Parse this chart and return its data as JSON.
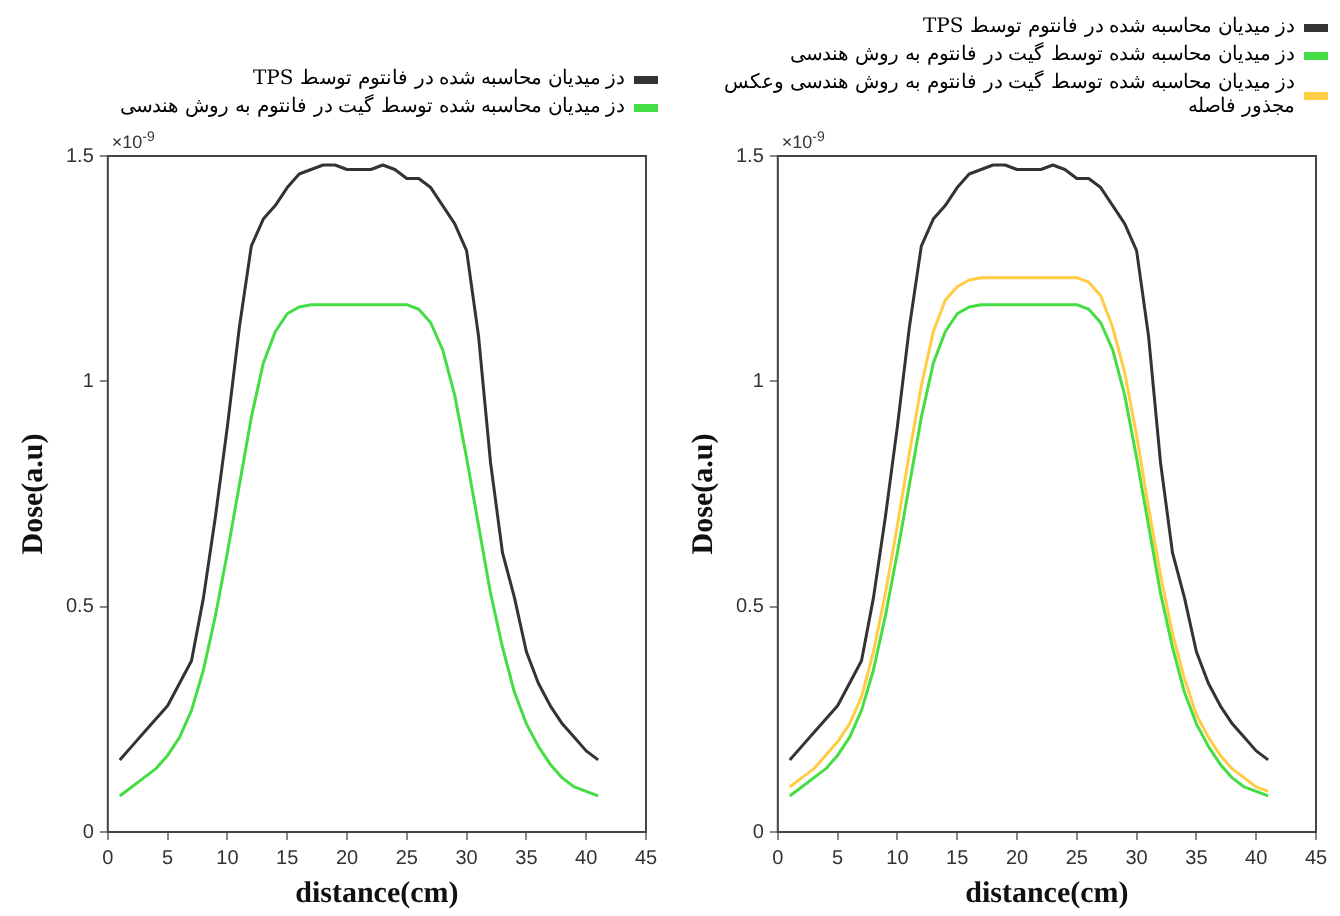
{
  "chart_data": [
    {
      "type": "line",
      "xlabel": "distance(cm)",
      "ylabel": "Dose(a.u)",
      "annotations": [
        "×10$^{-9}$"
      ],
      "legend": "top",
      "marker": "none",
      "line_style": "solid",
      "grid": false,
      "x": [
        1,
        2,
        3,
        4,
        5,
        6,
        7,
        8,
        9,
        10,
        11,
        12,
        13,
        14,
        15,
        16,
        17,
        18,
        19,
        20,
        21,
        22,
        23,
        24,
        25,
        26,
        27,
        28,
        29,
        30,
        31,
        32,
        33,
        34,
        35,
        36,
        37,
        38,
        39,
        40,
        41
      ],
      "xlim": [
        0,
        45
      ],
      "xticks": [
        0,
        5,
        10,
        15,
        20,
        25,
        30,
        35,
        40,
        45
      ],
      "ylim": [
        0,
        1.5
      ],
      "yticks": [
        0,
        0.5,
        1,
        1.5
      ],
      "series": [
        {
          "name": "دز میدیان محاسبه شده در فانتوم توسط TPS",
          "color": "#333333",
          "values": [
            0.16,
            0.19,
            0.22,
            0.25,
            0.28,
            0.33,
            0.38,
            0.52,
            0.7,
            0.9,
            1.12,
            1.3,
            1.36,
            1.39,
            1.43,
            1.46,
            1.47,
            1.48,
            1.48,
            1.47,
            1.47,
            1.47,
            1.48,
            1.47,
            1.45,
            1.45,
            1.43,
            1.39,
            1.35,
            1.29,
            1.1,
            0.82,
            0.62,
            0.52,
            0.4,
            0.33,
            0.28,
            0.24,
            0.21,
            0.18,
            0.16
          ]
        },
        {
          "name": "دز میدیان محاسبه شده توسط گیت در فانتوم به روش هندسی",
          "color": "#44dd44",
          "values": [
            0.08,
            0.1,
            0.12,
            0.14,
            0.17,
            0.21,
            0.27,
            0.36,
            0.48,
            0.62,
            0.77,
            0.92,
            1.04,
            1.11,
            1.15,
            1.165,
            1.17,
            1.17,
            1.17,
            1.17,
            1.17,
            1.17,
            1.17,
            1.17,
            1.17,
            1.16,
            1.13,
            1.07,
            0.97,
            0.83,
            0.68,
            0.53,
            0.41,
            0.31,
            0.24,
            0.19,
            0.15,
            0.12,
            0.1,
            0.09,
            0.08
          ]
        }
      ]
    },
    {
      "type": "line",
      "xlabel": "distance(cm)",
      "ylabel": "Dose(a.u)",
      "annotations": [
        "×10$^{-9}$"
      ],
      "legend": "top",
      "marker": "none",
      "line_style": "solid",
      "grid": false,
      "x": [
        1,
        2,
        3,
        4,
        5,
        6,
        7,
        8,
        9,
        10,
        11,
        12,
        13,
        14,
        15,
        16,
        17,
        18,
        19,
        20,
        21,
        22,
        23,
        24,
        25,
        26,
        27,
        28,
        29,
        30,
        31,
        32,
        33,
        34,
        35,
        36,
        37,
        38,
        39,
        40,
        41
      ],
      "xlim": [
        0,
        45
      ],
      "xticks": [
        0,
        5,
        10,
        15,
        20,
        25,
        30,
        35,
        40,
        45
      ],
      "ylim": [
        0,
        1.5
      ],
      "yticks": [
        0,
        0.5,
        1,
        1.5
      ],
      "series": [
        {
          "name": "دز میدیان محاسبه شده در فانتوم توسط TPS",
          "color": "#333333",
          "values": [
            0.16,
            0.19,
            0.22,
            0.25,
            0.28,
            0.33,
            0.38,
            0.52,
            0.7,
            0.9,
            1.12,
            1.3,
            1.36,
            1.39,
            1.43,
            1.46,
            1.47,
            1.48,
            1.48,
            1.47,
            1.47,
            1.47,
            1.48,
            1.47,
            1.45,
            1.45,
            1.43,
            1.39,
            1.35,
            1.29,
            1.1,
            0.82,
            0.62,
            0.52,
            0.4,
            0.33,
            0.28,
            0.24,
            0.21,
            0.18,
            0.16
          ]
        },
        {
          "name": "دز میدیان محاسبه شده توسط گیت در فانتوم به روش هندسی",
          "color": "#44dd44",
          "values": [
            0.08,
            0.1,
            0.12,
            0.14,
            0.17,
            0.21,
            0.27,
            0.36,
            0.48,
            0.62,
            0.77,
            0.92,
            1.04,
            1.11,
            1.15,
            1.165,
            1.17,
            1.17,
            1.17,
            1.17,
            1.17,
            1.17,
            1.17,
            1.17,
            1.17,
            1.16,
            1.13,
            1.07,
            0.97,
            0.83,
            0.68,
            0.53,
            0.41,
            0.31,
            0.24,
            0.19,
            0.15,
            0.12,
            0.1,
            0.09,
            0.08
          ]
        },
        {
          "name": "دز میدیان محاسبه شده توسط گیت در فانتوم به روش هندسی وعکس مجذور فاصله",
          "color": "#ffcc44",
          "values": [
            0.1,
            0.12,
            0.14,
            0.17,
            0.2,
            0.24,
            0.3,
            0.4,
            0.53,
            0.68,
            0.84,
            0.99,
            1.11,
            1.18,
            1.21,
            1.225,
            1.23,
            1.23,
            1.23,
            1.23,
            1.23,
            1.23,
            1.23,
            1.23,
            1.23,
            1.22,
            1.19,
            1.12,
            1.02,
            0.88,
            0.72,
            0.57,
            0.44,
            0.34,
            0.26,
            0.21,
            0.17,
            0.14,
            0.12,
            0.1,
            0.09
          ]
        }
      ]
    }
  ]
}
